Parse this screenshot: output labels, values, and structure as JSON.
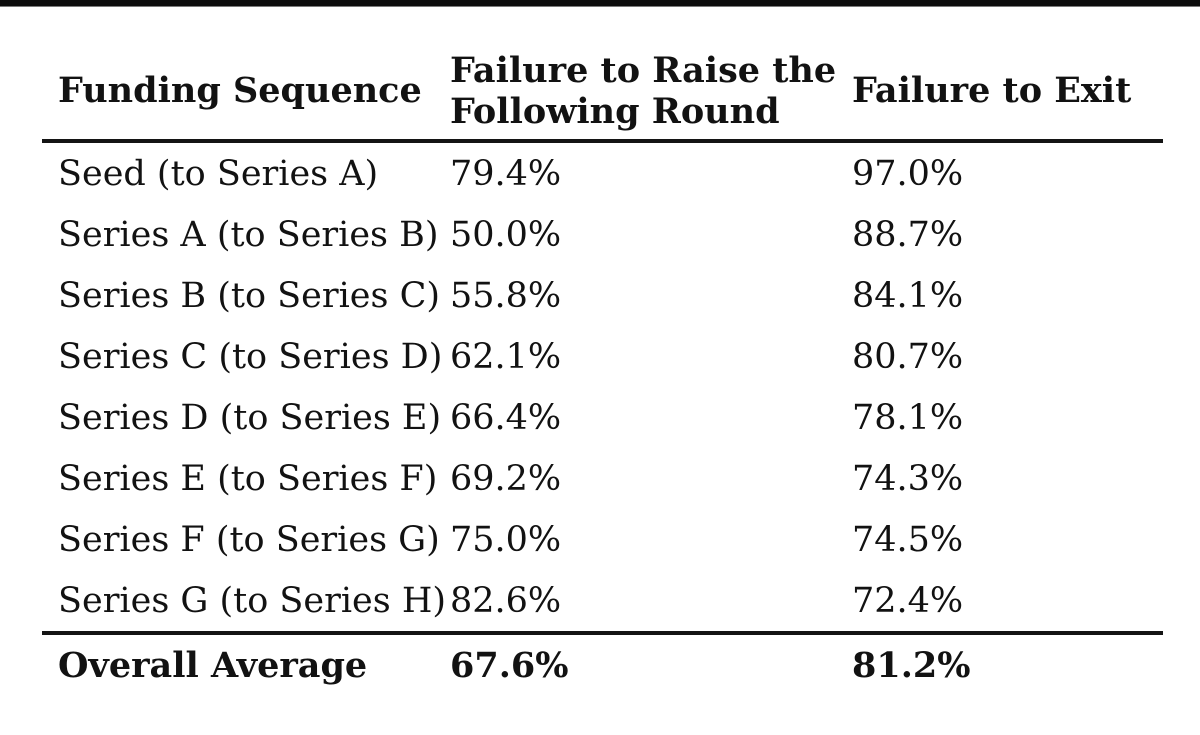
{
  "page": {
    "background": "#ffffff",
    "top_bar_color": "#0c0c0c",
    "text_color": "#121212",
    "rule_color": "#141414"
  },
  "table": {
    "columns": [
      {
        "label": "Funding Sequence"
      },
      {
        "label": "Failure to Raise the\nFollowing Round"
      },
      {
        "label": "Failure to Exit"
      }
    ],
    "rows": [
      {
        "sequence": "Seed (to Series A)",
        "raise": "79.4%",
        "exit": "97.0%"
      },
      {
        "sequence": "Series A (to Series B)",
        "raise": "50.0%",
        "exit": "88.7%"
      },
      {
        "sequence": "Series B (to Series C)",
        "raise": "55.8%",
        "exit": "84.1%"
      },
      {
        "sequence": "Series C (to Series D)",
        "raise": "62.1%",
        "exit": "80.7%"
      },
      {
        "sequence": "Series D (to Series E)",
        "raise": "66.4%",
        "exit": "78.1%"
      },
      {
        "sequence": "Series E (to Series F)",
        "raise": "69.2%",
        "exit": "74.3%"
      },
      {
        "sequence": "Series F (to Series G)",
        "raise": "75.0%",
        "exit": "74.5%"
      },
      {
        "sequence": "Series G (to Series H)",
        "raise": "82.6%",
        "exit": "72.4%"
      }
    ],
    "footer": {
      "label": "Overall Average",
      "raise": "67.6%",
      "exit": "81.2%"
    }
  },
  "chart_data": {
    "type": "table",
    "title": "",
    "columns": [
      "Funding Sequence",
      "Failure to Raise the Following Round",
      "Failure to Exit"
    ],
    "categories": [
      "Seed (to Series A)",
      "Series A (to Series B)",
      "Series B (to Series C)",
      "Series C (to Series D)",
      "Series D (to Series E)",
      "Series E (to Series F)",
      "Series F (to Series G)",
      "Series G (to Series H)"
    ],
    "series": [
      {
        "name": "Failure to Raise the Following Round",
        "unit": "%",
        "values": [
          79.4,
          50.0,
          55.8,
          62.1,
          66.4,
          69.2,
          75.0,
          82.6
        ],
        "overall_average": 67.6
      },
      {
        "name": "Failure to Exit",
        "unit": "%",
        "values": [
          97.0,
          88.7,
          84.1,
          80.7,
          78.1,
          74.3,
          74.5,
          72.4
        ],
        "overall_average": 81.2
      }
    ],
    "layout": {
      "grid": false,
      "legend": "none",
      "footer_row": "Overall Average"
    }
  }
}
